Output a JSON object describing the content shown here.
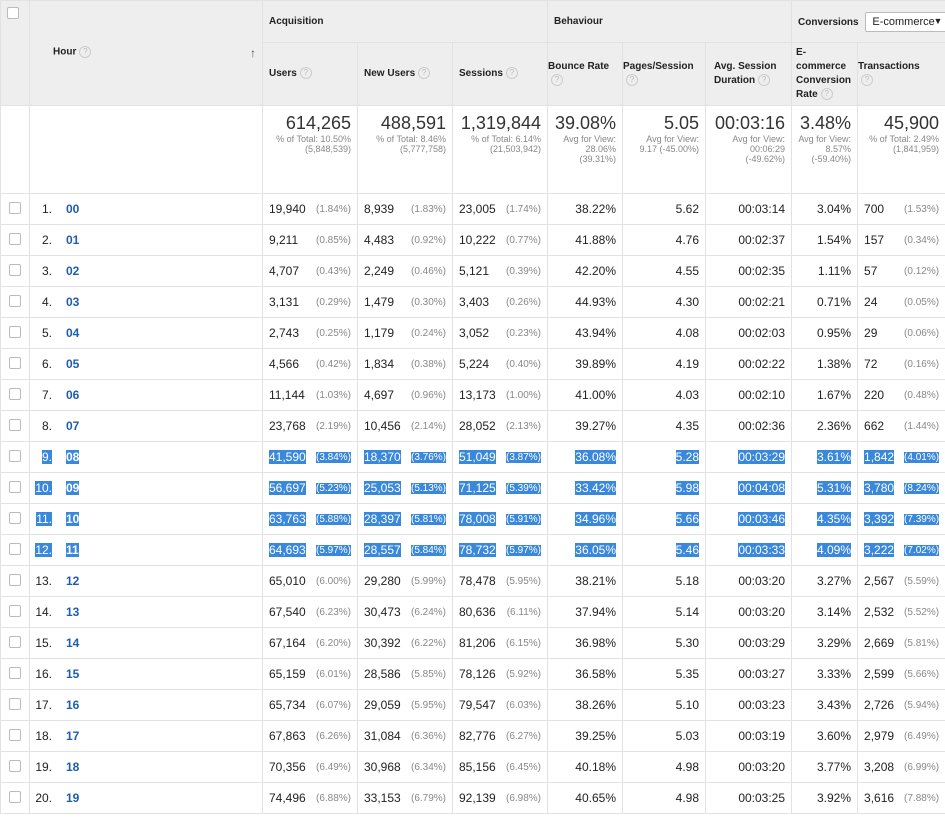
{
  "header": {
    "hour_label": "Hour",
    "groups": {
      "acquisition": "Acquisition",
      "behaviour": "Behaviour",
      "conversions": "Conversions"
    },
    "conversion_select": "E-commerce",
    "columns": {
      "users": "Users",
      "new_users": "New Users",
      "sessions": "Sessions",
      "bounce_rate": "Bounce Rate",
      "pages_session": "Pages/Session",
      "avg_session": "Avg. Session Duration",
      "conv_rate": "E-commerce Conversion Rate",
      "transactions": "Transactions"
    }
  },
  "totals": {
    "users": {
      "value": "614,265",
      "sub": "% of Total: 10.50% (5,848,539)"
    },
    "new_users": {
      "value": "488,591",
      "sub": "% of Total: 8.46% (5,777,758)"
    },
    "sessions": {
      "value": "1,319,844",
      "sub": "% of Total: 6.14% (21,503,942)"
    },
    "bounce_rate": {
      "value": "39.08%",
      "sub": "Avg for View: 28.06% (39.31%)"
    },
    "pages_session": {
      "value": "5.05",
      "sub": "Avg for View: 9.17 (-45.00%)"
    },
    "avg_session": {
      "value": "00:03:16",
      "sub": "Avg for View: 00:06:29 (-49.62%)"
    },
    "conv_rate": {
      "value": "3.48%",
      "sub": "Avg for View: 8.57% (-59.40%)"
    },
    "transactions": {
      "value": "45,900",
      "sub": "% of Total: 2.49% (1,841,959)"
    }
  },
  "rows": [
    {
      "idx": "1.",
      "hour": "00",
      "users": "19,940",
      "users_pct": "(1.84%)",
      "new": "8,939",
      "new_pct": "(1.83%)",
      "sess": "23,005",
      "sess_pct": "(1.74%)",
      "bounce": "38.22%",
      "pps": "5.62",
      "dur": "00:03:14",
      "conv": "3.04%",
      "trans": "700",
      "trans_pct": "(1.53%)",
      "hl": false
    },
    {
      "idx": "2.",
      "hour": "01",
      "users": "9,211",
      "users_pct": "(0.85%)",
      "new": "4,483",
      "new_pct": "(0.92%)",
      "sess": "10,222",
      "sess_pct": "(0.77%)",
      "bounce": "41.88%",
      "pps": "4.76",
      "dur": "00:02:37",
      "conv": "1.54%",
      "trans": "157",
      "trans_pct": "(0.34%)",
      "hl": false
    },
    {
      "idx": "3.",
      "hour": "02",
      "users": "4,707",
      "users_pct": "(0.43%)",
      "new": "2,249",
      "new_pct": "(0.46%)",
      "sess": "5,121",
      "sess_pct": "(0.39%)",
      "bounce": "42.20%",
      "pps": "4.55",
      "dur": "00:02:35",
      "conv": "1.11%",
      "trans": "57",
      "trans_pct": "(0.12%)",
      "hl": false
    },
    {
      "idx": "4.",
      "hour": "03",
      "users": "3,131",
      "users_pct": "(0.29%)",
      "new": "1,479",
      "new_pct": "(0.30%)",
      "sess": "3,403",
      "sess_pct": "(0.26%)",
      "bounce": "44.93%",
      "pps": "4.30",
      "dur": "00:02:21",
      "conv": "0.71%",
      "trans": "24",
      "trans_pct": "(0.05%)",
      "hl": false
    },
    {
      "idx": "5.",
      "hour": "04",
      "users": "2,743",
      "users_pct": "(0.25%)",
      "new": "1,179",
      "new_pct": "(0.24%)",
      "sess": "3,052",
      "sess_pct": "(0.23%)",
      "bounce": "43.94%",
      "pps": "4.08",
      "dur": "00:02:03",
      "conv": "0.95%",
      "trans": "29",
      "trans_pct": "(0.06%)",
      "hl": false
    },
    {
      "idx": "6.",
      "hour": "05",
      "users": "4,566",
      "users_pct": "(0.42%)",
      "new": "1,834",
      "new_pct": "(0.38%)",
      "sess": "5,224",
      "sess_pct": "(0.40%)",
      "bounce": "39.89%",
      "pps": "4.19",
      "dur": "00:02:22",
      "conv": "1.38%",
      "trans": "72",
      "trans_pct": "(0.16%)",
      "hl": false
    },
    {
      "idx": "7.",
      "hour": "06",
      "users": "11,144",
      "users_pct": "(1.03%)",
      "new": "4,697",
      "new_pct": "(0.96%)",
      "sess": "13,173",
      "sess_pct": "(1.00%)",
      "bounce": "41.00%",
      "pps": "4.03",
      "dur": "00:02:10",
      "conv": "1.67%",
      "trans": "220",
      "trans_pct": "(0.48%)",
      "hl": false
    },
    {
      "idx": "8.",
      "hour": "07",
      "users": "23,768",
      "users_pct": "(2.19%)",
      "new": "10,456",
      "new_pct": "(2.14%)",
      "sess": "28,052",
      "sess_pct": "(2.13%)",
      "bounce": "39.27%",
      "pps": "4.35",
      "dur": "00:02:36",
      "conv": "2.36%",
      "trans": "662",
      "trans_pct": "(1.44%)",
      "hl": false
    },
    {
      "idx": "9.",
      "hour": "08",
      "users": "41,590",
      "users_pct": "(3.84%)",
      "new": "18,370",
      "new_pct": "(3.76%)",
      "sess": "51,049",
      "sess_pct": "(3.87%)",
      "bounce": "36.08%",
      "pps": "5.28",
      "dur": "00:03:29",
      "conv": "3.61%",
      "trans": "1,842",
      "trans_pct": "(4.01%)",
      "hl": true
    },
    {
      "idx": "10.",
      "hour": "09",
      "users": "56,697",
      "users_pct": "(5.23%)",
      "new": "25,053",
      "new_pct": "(5.13%)",
      "sess": "71,125",
      "sess_pct": "(5.39%)",
      "bounce": "33.42%",
      "pps": "5.98",
      "dur": "00:04:08",
      "conv": "5.31%",
      "trans": "3,780",
      "trans_pct": "(8.24%)",
      "hl": true
    },
    {
      "idx": "11.",
      "hour": "10",
      "users": "63,763",
      "users_pct": "(5.88%)",
      "new": "28,397",
      "new_pct": "(5.81%)",
      "sess": "78,008",
      "sess_pct": "(5.91%)",
      "bounce": "34.96%",
      "pps": "5.66",
      "dur": "00:03:46",
      "conv": "4.35%",
      "trans": "3,392",
      "trans_pct": "(7.39%)",
      "hl": true
    },
    {
      "idx": "12.",
      "hour": "11",
      "users": "64,693",
      "users_pct": "(5.97%)",
      "new": "28,557",
      "new_pct": "(5.84%)",
      "sess": "78,732",
      "sess_pct": "(5.97%)",
      "bounce": "36.05%",
      "pps": "5.46",
      "dur": "00:03:33",
      "conv": "4.09%",
      "trans": "3,222",
      "trans_pct": "(7.02%)",
      "hl": true
    },
    {
      "idx": "13.",
      "hour": "12",
      "users": "65,010",
      "users_pct": "(6.00%)",
      "new": "29,280",
      "new_pct": "(5.99%)",
      "sess": "78,478",
      "sess_pct": "(5.95%)",
      "bounce": "38.21%",
      "pps": "5.18",
      "dur": "00:03:20",
      "conv": "3.27%",
      "trans": "2,567",
      "trans_pct": "(5.59%)",
      "hl": false
    },
    {
      "idx": "14.",
      "hour": "13",
      "users": "67,540",
      "users_pct": "(6.23%)",
      "new": "30,473",
      "new_pct": "(6.24%)",
      "sess": "80,636",
      "sess_pct": "(6.11%)",
      "bounce": "37.94%",
      "pps": "5.14",
      "dur": "00:03:20",
      "conv": "3.14%",
      "trans": "2,532",
      "trans_pct": "(5.52%)",
      "hl": false
    },
    {
      "idx": "15.",
      "hour": "14",
      "users": "67,164",
      "users_pct": "(6.20%)",
      "new": "30,392",
      "new_pct": "(6.22%)",
      "sess": "81,206",
      "sess_pct": "(6.15%)",
      "bounce": "36.98%",
      "pps": "5.30",
      "dur": "00:03:29",
      "conv": "3.29%",
      "trans": "2,669",
      "trans_pct": "(5.81%)",
      "hl": false
    },
    {
      "idx": "16.",
      "hour": "15",
      "users": "65,159",
      "users_pct": "(6.01%)",
      "new": "28,586",
      "new_pct": "(5.85%)",
      "sess": "78,126",
      "sess_pct": "(5.92%)",
      "bounce": "36.58%",
      "pps": "5.35",
      "dur": "00:03:27",
      "conv": "3.33%",
      "trans": "2,599",
      "trans_pct": "(5.66%)",
      "hl": false
    },
    {
      "idx": "17.",
      "hour": "16",
      "users": "65,734",
      "users_pct": "(6.07%)",
      "new": "29,059",
      "new_pct": "(5.95%)",
      "sess": "79,547",
      "sess_pct": "(6.03%)",
      "bounce": "38.26%",
      "pps": "5.10",
      "dur": "00:03:23",
      "conv": "3.43%",
      "trans": "2,726",
      "trans_pct": "(5.94%)",
      "hl": false
    },
    {
      "idx": "18.",
      "hour": "17",
      "users": "67,863",
      "users_pct": "(6.26%)",
      "new": "31,084",
      "new_pct": "(6.36%)",
      "sess": "82,776",
      "sess_pct": "(6.27%)",
      "bounce": "39.25%",
      "pps": "5.03",
      "dur": "00:03:19",
      "conv": "3.60%",
      "trans": "2,979",
      "trans_pct": "(6.49%)",
      "hl": false
    },
    {
      "idx": "19.",
      "hour": "18",
      "users": "70,356",
      "users_pct": "(6.49%)",
      "new": "30,968",
      "new_pct": "(6.34%)",
      "sess": "85,156",
      "sess_pct": "(6.45%)",
      "bounce": "40.18%",
      "pps": "4.98",
      "dur": "00:03:20",
      "conv": "3.77%",
      "trans": "3,208",
      "trans_pct": "(6.99%)",
      "hl": false
    },
    {
      "idx": "20.",
      "hour": "19",
      "users": "74,496",
      "users_pct": "(6.88%)",
      "new": "33,153",
      "new_pct": "(6.79%)",
      "sess": "92,139",
      "sess_pct": "(6.98%)",
      "bounce": "40.65%",
      "pps": "4.98",
      "dur": "00:03:25",
      "conv": "3.92%",
      "trans": "3,616",
      "trans_pct": "(7.88%)",
      "hl": false
    }
  ]
}
